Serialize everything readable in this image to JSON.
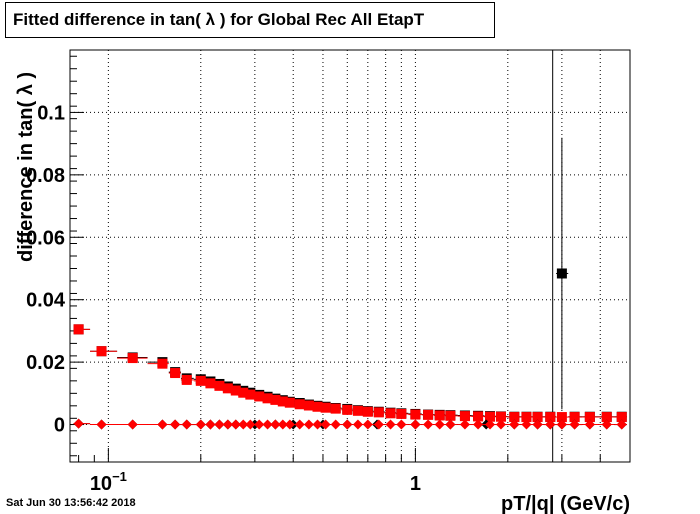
{
  "chart_data": {
    "type": "scatter",
    "title": "Fitted difference in tan( λ ) for Global Rec All EtapT",
    "xlabel": "pT/|q| (GeV/c)",
    "ylabel": "difference in tan( λ )",
    "x_scale": "log",
    "xlim": [
      0.075,
      5.0
    ],
    "ylim": [
      -0.012,
      0.12
    ],
    "grid": true,
    "x_ticks": [
      {
        "value": 0.1,
        "base": "10",
        "exp": "−1"
      },
      {
        "value": 1,
        "base": "1",
        "exp": ""
      }
    ],
    "y_ticks": [
      {
        "value": 0,
        "label": "0"
      },
      {
        "value": 0.02,
        "label": "0.02"
      },
      {
        "value": 0.04,
        "label": "0.04"
      },
      {
        "value": 0.06,
        "label": "0.06"
      },
      {
        "value": 0.08,
        "label": "0.08"
      },
      {
        "value": 0.1,
        "label": "0.1"
      }
    ],
    "vertical_line_x": 2.8,
    "series": [
      {
        "color": "#000000",
        "marker": "square",
        "points": [
          {
            "x": 0.08,
            "y": 0.0305
          },
          {
            "x": 0.095,
            "y": 0.0235
          },
          {
            "x": 0.12,
            "y": 0.0215
          },
          {
            "x": 0.15,
            "y": 0.02
          },
          {
            "x": 0.165,
            "y": 0.0168
          },
          {
            "x": 0.18,
            "y": 0.0148
          },
          {
            "x": 0.2,
            "y": 0.0145
          },
          {
            "x": 0.215,
            "y": 0.0138
          },
          {
            "x": 0.23,
            "y": 0.013
          },
          {
            "x": 0.245,
            "y": 0.0122
          },
          {
            "x": 0.26,
            "y": 0.0115
          },
          {
            "x": 0.275,
            "y": 0.0108
          },
          {
            "x": 0.29,
            "y": 0.0102
          },
          {
            "x": 0.31,
            "y": 0.0095
          },
          {
            "x": 0.33,
            "y": 0.0089
          },
          {
            "x": 0.35,
            "y": 0.0083
          },
          {
            "x": 0.37,
            "y": 0.0078
          },
          {
            "x": 0.39,
            "y": 0.0073
          },
          {
            "x": 0.42,
            "y": 0.0069
          },
          {
            "x": 0.45,
            "y": 0.0064
          },
          {
            "x": 0.48,
            "y": 0.006
          },
          {
            "x": 0.51,
            "y": 0.0057
          },
          {
            "x": 0.55,
            "y": 0.0053
          },
          {
            "x": 0.6,
            "y": 0.005
          },
          {
            "x": 0.65,
            "y": 0.0046
          },
          {
            "x": 0.7,
            "y": 0.0043
          },
          {
            "x": 0.76,
            "y": 0.0041
          },
          {
            "x": 0.83,
            "y": 0.0038
          },
          {
            "x": 0.9,
            "y": 0.0036
          },
          {
            "x": 1.0,
            "y": 0.0034
          },
          {
            "x": 1.1,
            "y": 0.0032
          },
          {
            "x": 1.2,
            "y": 0.0031
          },
          {
            "x": 1.3,
            "y": 0.003
          },
          {
            "x": 1.45,
            "y": 0.0029
          },
          {
            "x": 1.6,
            "y": 0.0028
          },
          {
            "x": 1.75,
            "y": 0.0027
          },
          {
            "x": 1.9,
            "y": 0.0026
          },
          {
            "x": 2.1,
            "y": 0.0025
          },
          {
            "x": 2.3,
            "y": 0.0025
          },
          {
            "x": 2.5,
            "y": 0.0025
          },
          {
            "x": 2.75,
            "y": 0.0025
          },
          {
            "x": 3.0,
            "y": 0.0484,
            "err": 0.0435
          },
          {
            "x": 3.3,
            "y": 0.0025
          },
          {
            "x": 3.7,
            "y": 0.0025
          },
          {
            "x": 4.2,
            "y": 0.0025
          },
          {
            "x": 4.7,
            "y": 0.0025
          }
        ]
      },
      {
        "color": "#ff0000",
        "marker": "square",
        "points": [
          {
            "x": 0.08,
            "y": 0.0305
          },
          {
            "x": 0.095,
            "y": 0.0235
          },
          {
            "x": 0.12,
            "y": 0.0213
          },
          {
            "x": 0.15,
            "y": 0.0195
          },
          {
            "x": 0.165,
            "y": 0.0165
          },
          {
            "x": 0.18,
            "y": 0.0143
          },
          {
            "x": 0.2,
            "y": 0.014
          },
          {
            "x": 0.215,
            "y": 0.0132
          },
          {
            "x": 0.23,
            "y": 0.0124
          },
          {
            "x": 0.245,
            "y": 0.0116
          },
          {
            "x": 0.26,
            "y": 0.0109
          },
          {
            "x": 0.275,
            "y": 0.0102
          },
          {
            "x": 0.29,
            "y": 0.0096
          },
          {
            "x": 0.31,
            "y": 0.009
          },
          {
            "x": 0.33,
            "y": 0.0084
          },
          {
            "x": 0.35,
            "y": 0.0079
          },
          {
            "x": 0.37,
            "y": 0.0074
          },
          {
            "x": 0.39,
            "y": 0.007
          },
          {
            "x": 0.42,
            "y": 0.0065
          },
          {
            "x": 0.45,
            "y": 0.0061
          },
          {
            "x": 0.48,
            "y": 0.0057
          },
          {
            "x": 0.51,
            "y": 0.0054
          },
          {
            "x": 0.55,
            "y": 0.0051
          },
          {
            "x": 0.6,
            "y": 0.0047
          },
          {
            "x": 0.65,
            "y": 0.0044
          },
          {
            "x": 0.7,
            "y": 0.0041
          },
          {
            "x": 0.76,
            "y": 0.0039
          },
          {
            "x": 0.83,
            "y": 0.0036
          },
          {
            "x": 0.9,
            "y": 0.0034
          },
          {
            "x": 1.0,
            "y": 0.0032
          },
          {
            "x": 1.1,
            "y": 0.0031
          },
          {
            "x": 1.2,
            "y": 0.0029
          },
          {
            "x": 1.3,
            "y": 0.0028
          },
          {
            "x": 1.45,
            "y": 0.0027
          },
          {
            "x": 1.6,
            "y": 0.0026
          },
          {
            "x": 1.75,
            "y": 0.0025
          },
          {
            "x": 1.9,
            "y": 0.0025
          },
          {
            "x": 2.1,
            "y": 0.0024
          },
          {
            "x": 2.3,
            "y": 0.0024
          },
          {
            "x": 2.5,
            "y": 0.0024
          },
          {
            "x": 2.75,
            "y": 0.0024
          },
          {
            "x": 3.0,
            "y": 0.0024
          },
          {
            "x": 3.3,
            "y": 0.0024
          },
          {
            "x": 3.7,
            "y": 0.0024
          },
          {
            "x": 4.2,
            "y": 0.0024
          },
          {
            "x": 4.7,
            "y": 0.0024
          }
        ]
      },
      {
        "color": "#000000",
        "marker": "diamond",
        "points": [
          {
            "x": 0.08,
            "y": 0.0003
          },
          {
            "x": 0.095,
            "y": 0.0
          },
          {
            "x": 0.12,
            "y": 0.0
          },
          {
            "x": 0.15,
            "y": 0.0
          },
          {
            "x": 0.165,
            "y": 0.0
          },
          {
            "x": 0.18,
            "y": 0.0
          },
          {
            "x": 0.2,
            "y": 0.0
          },
          {
            "x": 0.215,
            "y": 0.0
          },
          {
            "x": 0.23,
            "y": 0.0
          },
          {
            "x": 0.245,
            "y": 0.0
          },
          {
            "x": 0.26,
            "y": 0.0
          },
          {
            "x": 0.3,
            "y": 0.0
          },
          {
            "x": 0.35,
            "y": 0.0
          },
          {
            "x": 0.4,
            "y": 0.0
          },
          {
            "x": 0.5,
            "y": 0.0
          },
          {
            "x": 0.6,
            "y": 0.0
          },
          {
            "x": 0.75,
            "y": 0.0
          },
          {
            "x": 1.0,
            "y": 0.0
          },
          {
            "x": 1.3,
            "y": 0.0
          },
          {
            "x": 1.7,
            "y": 0.0
          },
          {
            "x": 2.1,
            "y": 0.0
          },
          {
            "x": 2.5,
            "y": 0.0
          },
          {
            "x": 2.75,
            "y": 0.0
          },
          {
            "x": 3.0,
            "y": 0.0
          },
          {
            "x": 3.3,
            "y": 0.0
          },
          {
            "x": 3.7,
            "y": 0.0
          },
          {
            "x": 4.2,
            "y": 0.0
          },
          {
            "x": 4.7,
            "y": 0.0
          }
        ]
      },
      {
        "color": "#ff0000",
        "marker": "diamond",
        "points": [
          {
            "x": 0.08,
            "y": 0.0003
          },
          {
            "x": 0.095,
            "y": 0.0
          },
          {
            "x": 0.12,
            "y": 0.0
          },
          {
            "x": 0.15,
            "y": 0.0
          },
          {
            "x": 0.165,
            "y": 0.0
          },
          {
            "x": 0.18,
            "y": 0.0
          },
          {
            "x": 0.2,
            "y": 0.0
          },
          {
            "x": 0.215,
            "y": 0.0
          },
          {
            "x": 0.23,
            "y": 0.0
          },
          {
            "x": 0.245,
            "y": 0.0
          },
          {
            "x": 0.26,
            "y": 0.0
          },
          {
            "x": 0.275,
            "y": 0.0
          },
          {
            "x": 0.29,
            "y": 0.0
          },
          {
            "x": 0.31,
            "y": 0.0
          },
          {
            "x": 0.33,
            "y": 0.0
          },
          {
            "x": 0.35,
            "y": 0.0
          },
          {
            "x": 0.37,
            "y": 0.0
          },
          {
            "x": 0.39,
            "y": 0.0
          },
          {
            "x": 0.42,
            "y": 0.0
          },
          {
            "x": 0.45,
            "y": 0.0
          },
          {
            "x": 0.48,
            "y": 0.0
          },
          {
            "x": 0.51,
            "y": 0.0
          },
          {
            "x": 0.55,
            "y": 0.0
          },
          {
            "x": 0.6,
            "y": 0.0
          },
          {
            "x": 0.65,
            "y": 0.0
          },
          {
            "x": 0.7,
            "y": 0.0
          },
          {
            "x": 0.76,
            "y": 0.0
          },
          {
            "x": 0.83,
            "y": 0.0
          },
          {
            "x": 0.9,
            "y": 0.0
          },
          {
            "x": 1.0,
            "y": 0.0
          },
          {
            "x": 1.1,
            "y": 0.0
          },
          {
            "x": 1.2,
            "y": 0.0
          },
          {
            "x": 1.3,
            "y": 0.0
          },
          {
            "x": 1.45,
            "y": 0.0
          },
          {
            "x": 1.6,
            "y": 0.0
          },
          {
            "x": 1.75,
            "y": 0.0
          },
          {
            "x": 1.9,
            "y": 0.0
          },
          {
            "x": 2.1,
            "y": 0.0
          },
          {
            "x": 2.3,
            "y": 0.0
          },
          {
            "x": 2.5,
            "y": 0.0
          },
          {
            "x": 2.75,
            "y": 0.0
          },
          {
            "x": 3.0,
            "y": 0.0
          },
          {
            "x": 3.3,
            "y": 0.0
          },
          {
            "x": 3.7,
            "y": 0.0
          },
          {
            "x": 4.2,
            "y": 0.0
          },
          {
            "x": 4.7,
            "y": 0.0
          }
        ]
      }
    ]
  },
  "footer": {
    "timestamp": "Sat Jun 30 13:56:42 2018"
  }
}
